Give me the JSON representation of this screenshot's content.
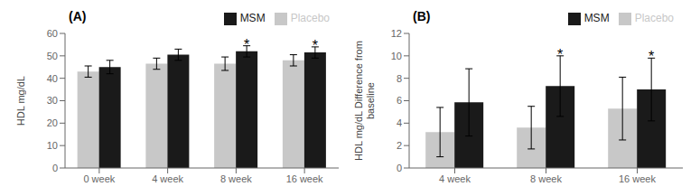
{
  "chart_data": [
    {
      "type": "bar",
      "title": "(A)",
      "categories": [
        "0 week",
        "4 week",
        "8 week",
        "16 week"
      ],
      "series": [
        {
          "name": "Placebo",
          "color": "#c8c8c8",
          "values": [
            43,
            46.5,
            46.5,
            48
          ],
          "errors": [
            2.5,
            2.5,
            3,
            2.5
          ]
        },
        {
          "name": "MSM",
          "color": "#1a1a1a",
          "values": [
            45,
            50.5,
            52,
            51.5
          ],
          "errors": [
            3,
            2.5,
            2.5,
            2.5
          ]
        }
      ],
      "y_label": "HDL mg/dL",
      "ylim": [
        0,
        60
      ],
      "yticks": [
        0,
        10,
        20,
        30,
        40,
        50,
        60
      ],
      "legend": "upper right",
      "grid": false,
      "annotations": [
        {
          "text": "*",
          "series": "MSM",
          "category": "8 week"
        },
        {
          "text": "*",
          "series": "MSM",
          "category": "16 week"
        }
      ]
    },
    {
      "type": "bar",
      "title": "(B)",
      "categories": [
        "4 week",
        "8 week",
        "16 week"
      ],
      "series": [
        {
          "name": "Placebo",
          "color": "#c8c8c8",
          "values": [
            3.2,
            3.6,
            5.3
          ],
          "errors": [
            2.2,
            1.9,
            2.8
          ]
        },
        {
          "name": "MSM",
          "color": "#1a1a1a",
          "values": [
            5.85,
            7.3,
            7.0
          ],
          "errors": [
            3.0,
            2.7,
            2.8
          ]
        }
      ],
      "y_label": "HDL mg/dL Difference from baseline",
      "ylim": [
        0,
        12
      ],
      "yticks": [
        0,
        2,
        4,
        6,
        8,
        10,
        12
      ],
      "legend": "upper right",
      "grid": false,
      "annotations": [
        {
          "text": "*",
          "series": "MSM",
          "category": "8 week"
        },
        {
          "text": "*",
          "series": "MSM",
          "category": "16 week"
        }
      ]
    }
  ]
}
